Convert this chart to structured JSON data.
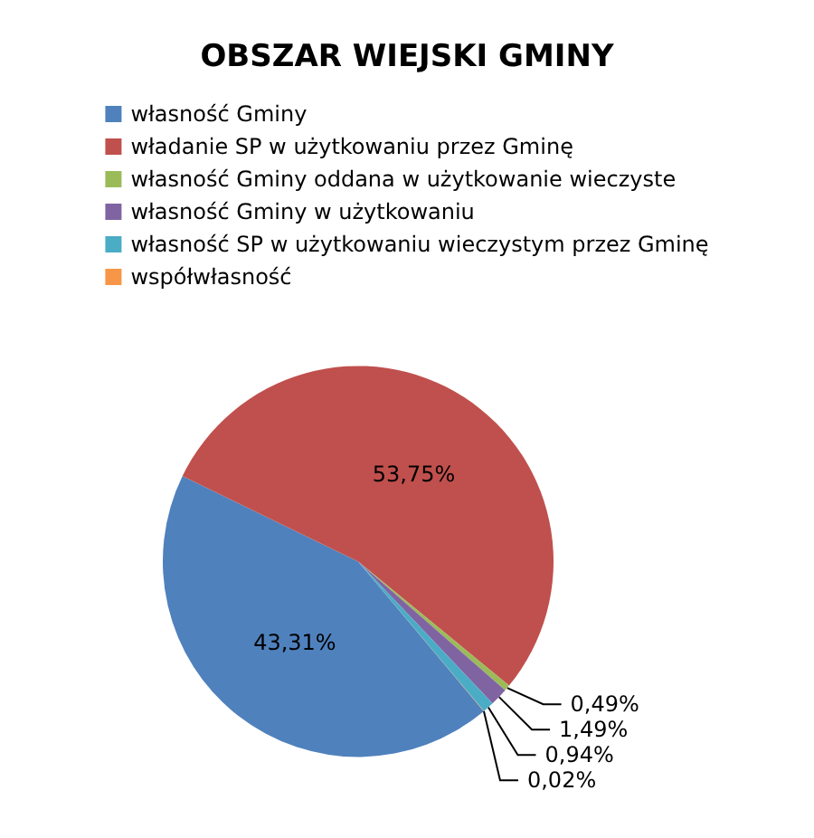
{
  "chart_data": {
    "type": "pie",
    "title": "OBSZAR WIEJSKI GMINY",
    "categories": [
      "własność Gminy",
      "władanie SP w użytkowaniu przez Gminę",
      "własność Gminy oddana w użytkowanie wieczyste",
      "własność Gminy w użytkowaniu",
      "własność SP w użytkowaniu wieczystym przez Gminę",
      "współwłasność"
    ],
    "values": [
      43.31,
      53.75,
      0.49,
      1.49,
      0.94,
      0.02
    ],
    "colors": [
      "#4f81bd",
      "#c0504d",
      "#9bbb59",
      "#8064a2",
      "#4bacc6",
      "#f79646"
    ],
    "value_labels": [
      "43,31%",
      "53,75%",
      "0,49%",
      "1,49%",
      "0,94%",
      "0,02%"
    ],
    "legend": "top"
  }
}
